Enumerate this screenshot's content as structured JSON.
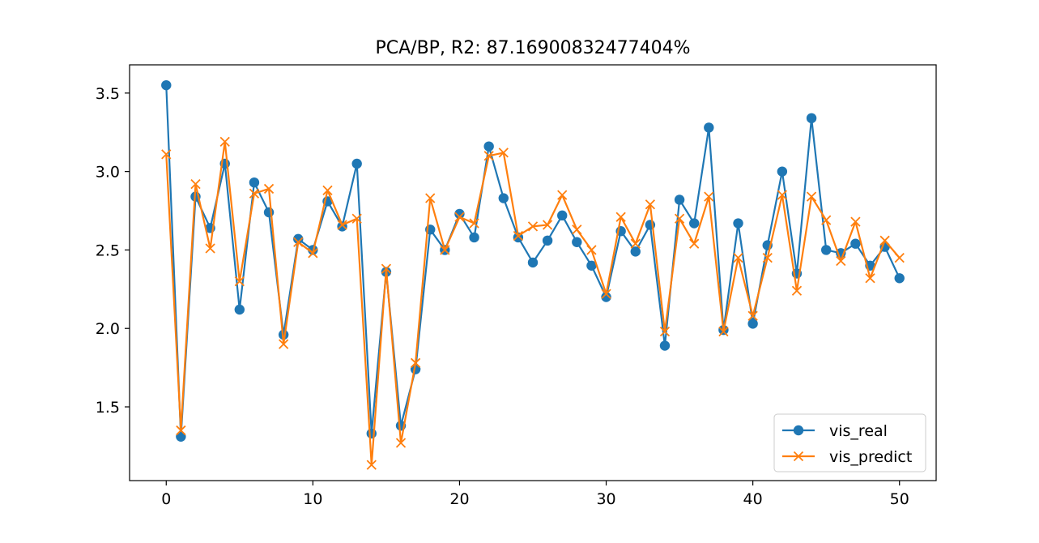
{
  "chart_data": {
    "type": "line",
    "title": "PCA/BP, R2: 87.16900832477404%",
    "xlabel": "",
    "ylabel": "",
    "xlim": [
      -2.5,
      52.5
    ],
    "ylim": [
      1.03,
      3.68
    ],
    "xticks": [
      0,
      10,
      20,
      30,
      40,
      50
    ],
    "xtick_labels": [
      "0",
      "10",
      "20",
      "30",
      "40",
      "50"
    ],
    "yticks": [
      1.5,
      2.0,
      2.5,
      3.0,
      3.5
    ],
    "ytick_labels": [
      "1.5",
      "2.0",
      "2.5",
      "3.0",
      "3.5"
    ],
    "grid": false,
    "legend_position": "lower-right",
    "x": [
      0,
      1,
      2,
      3,
      4,
      5,
      6,
      7,
      8,
      9,
      10,
      11,
      12,
      13,
      14,
      15,
      16,
      17,
      18,
      19,
      20,
      21,
      22,
      23,
      24,
      25,
      26,
      27,
      28,
      29,
      30,
      31,
      32,
      33,
      34,
      35,
      36,
      37,
      38,
      39,
      40,
      41,
      42,
      43,
      44,
      45,
      46,
      47,
      48,
      49,
      50
    ],
    "series": [
      {
        "name": "vis_real",
        "color": "#1f77b4",
        "marker": "circle",
        "values": [
          3.55,
          1.31,
          2.84,
          2.64,
          3.05,
          2.12,
          2.93,
          2.74,
          1.96,
          2.57,
          2.5,
          2.81,
          2.65,
          3.05,
          1.33,
          2.36,
          1.38,
          1.74,
          2.63,
          2.5,
          2.73,
          2.58,
          3.16,
          2.83,
          2.58,
          2.42,
          2.56,
          2.72,
          2.55,
          2.4,
          2.2,
          2.62,
          2.49,
          2.66,
          1.89,
          2.82,
          2.67,
          3.28,
          1.99,
          2.67,
          2.03,
          2.53,
          3.0,
          2.35,
          3.34,
          2.5,
          2.48,
          2.54,
          2.4,
          2.52,
          2.32
        ]
      },
      {
        "name": "vis_predict",
        "color": "#ff7f0e",
        "marker": "x",
        "values": [
          3.11,
          1.35,
          2.92,
          2.51,
          3.19,
          2.3,
          2.86,
          2.89,
          1.9,
          2.55,
          2.48,
          2.88,
          2.66,
          2.7,
          1.13,
          2.38,
          1.27,
          1.78,
          2.83,
          2.5,
          2.71,
          2.67,
          3.1,
          3.12,
          2.59,
          2.65,
          2.66,
          2.85,
          2.63,
          2.5,
          2.22,
          2.71,
          2.54,
          2.79,
          1.98,
          2.7,
          2.54,
          2.84,
          1.98,
          2.45,
          2.08,
          2.45,
          2.85,
          2.24,
          2.84,
          2.69,
          2.43,
          2.68,
          2.32,
          2.56,
          2.45
        ]
      }
    ]
  }
}
